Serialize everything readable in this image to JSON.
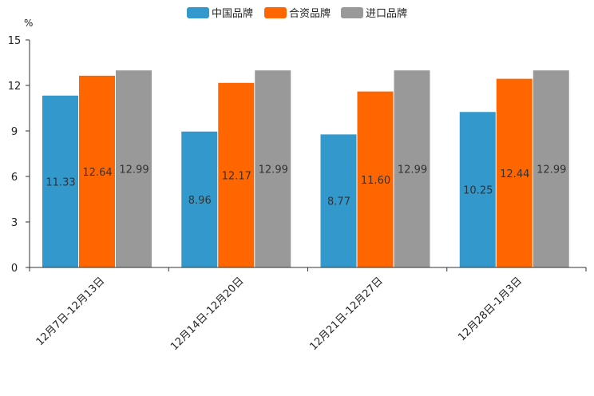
{
  "chart_data": {
    "type": "bar",
    "title": "",
    "xlabel": "",
    "ylabel": "%",
    "ylim": [
      0,
      15
    ],
    "yticks": [
      0,
      3,
      6,
      9,
      12,
      15
    ],
    "grid": false,
    "legend_position": "top-center",
    "categories": [
      "12月7日-12月13日",
      "12月14日-12月20日",
      "12月21日-12月27日",
      "12月28日-1月3日"
    ],
    "series": [
      {
        "name": "中国品牌",
        "color": "#3399cc",
        "values": [
          11.33,
          8.96,
          8.77,
          10.25
        ]
      },
      {
        "name": "合资品牌",
        "color": "#ff6600",
        "values": [
          12.64,
          12.17,
          11.6,
          12.44
        ]
      },
      {
        "name": "进口品牌",
        "color": "#999999",
        "values": [
          12.99,
          12.99,
          12.99,
          12.99
        ]
      }
    ]
  }
}
